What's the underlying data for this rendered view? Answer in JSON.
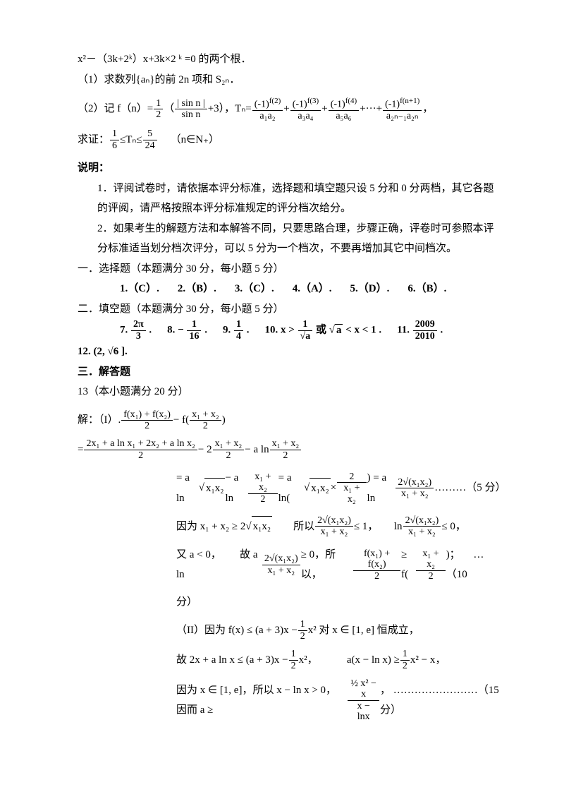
{
  "colors": {
    "text": "#000000",
    "bg": "#ffffff"
  },
  "fonts": {
    "body_family": "SimSun",
    "body_size_pt": 11
  },
  "problem": {
    "eq_roots": "x²－（3k+2ᵏ）x+3k×2 ᵏ =0 的两个根．",
    "part1": "（1）求数列{aₙ}的前 2n 项和 S₂ₙ．",
    "part2_prefix": "（2）记 f（n）=",
    "part2_half": "1",
    "part2_half_den": "2",
    "part2_paren_open": "（",
    "part2_sin_num": "| sin n |",
    "part2_sin_den": "sin n",
    "part2_plus3": "+3），",
    "Tn": "Tₙ=",
    "T_terms_f2": "(-1)",
    "T_terms_exp2": "f(2)",
    "T_terms_d1": "a₁a₂",
    "T_terms_exp3": "f(3)",
    "T_terms_d2": "a₃a₄",
    "T_terms_exp4": "f(4)",
    "T_terms_d3": "a₅a₆",
    "T_terms_dots": "+···+",
    "T_terms_expn1": "f(n+1)",
    "T_terms_dn": "a₂ₙ₋₁a₂ₙ",
    "comma": "，",
    "prove_prefix": "求证：",
    "prove_16_num": "1",
    "prove_16_den": "6",
    "prove_le": "≤Tₙ≤",
    "prove_524_num": "5",
    "prove_524_den": "24",
    "prove_tail": "（n∈N₊）"
  },
  "explain": {
    "title": "说明：",
    "p1": "1．评阅试卷时，请依据本评分标准，选择题和填空题只设 5 分和 0 分两档，其它各题的评阅，请严格按照本评分标准规定的评分档次给分。",
    "p2": "2．如果考生的解题方法和本解答不同，只要思路合理，步骤正确，评卷时可参照本评分标准适当划分档次评分，可以 5 分为一个档次，不要再增加其它中间档次。"
  },
  "sec1": {
    "title": "一．选择题",
    "note": "（本题满分 30 分，每小题 5 分）",
    "a1": "1.（C）.",
    "a2": "2.（B）.",
    "a3": "3.（C）.",
    "a4": "4.（A）.",
    "a5": "5.（D）.",
    "a6": "6.（B）."
  },
  "sec2": {
    "title": "二．填空题",
    "note": "（本题满分 30 分，每小题 5 分）",
    "q7_label": "7.",
    "q7_num": "2π",
    "q7_den": "3",
    "dot": ".",
    "q8_label": "8.",
    "q8_neg": "−",
    "q8_num": "1",
    "q8_den": "16",
    "q9_label": "9.",
    "q9_num": "1",
    "q9_den": "4",
    "q10_label": "10.",
    "q10_x": "x >",
    "q10_num": "1",
    "q10_den": "√a",
    "q10_or": " 或 ",
    "q10_sqrt": "a",
    "q10_lt": " < x < 1 .",
    "q11_label": "11.",
    "q11_num": "2009",
    "q11_den": "2010",
    "q12_label": "12.",
    "q12_val": "(2, √6 ]."
  },
  "sec3": {
    "title": "三．解答题",
    "q13": "13（本小题满分 20 分）",
    "sol_head": "解：（I）.",
    "line1_num": "f(x₁) + f(x₂)",
    "line1_den": "2",
    "line1_minus": " − f(",
    "line1b_num": "x₁ + x₂",
    "line1b_den": "2",
    "line1_close": ")",
    "line2_eq": "=",
    "line2_num": "2x₁ + a ln x₁ + 2x₂ + a ln x₂",
    "line2_den": "2",
    "line2_m": " − 2 ",
    "line2b_num": "x₁ + x₂",
    "line2b_den": "2",
    "line2_m2": " − a ln ",
    "line3_eq": "= a ln ",
    "line3_sqrt": "x₁x₂",
    "line3_m": " − a ln ",
    "line3b_num": "x₁ + x₂",
    "line3b_den": "2",
    "line3_eq2": " = a ln(",
    "line3_times": " × ",
    "line3c_num": "2",
    "line3c_den": "x₁ + x₂",
    "line3_close": ") = a ln ",
    "line3d_num": "2√(x₁x₂)",
    "line3d_den": "x₁ + x₂",
    "line3_dots": " ………（5 分）",
    "line4_since": "因为 x₁ + x₂ ≥ 2",
    "line4_sqrt": "x₁x₂",
    "line4_so": "　　所以 ",
    "line4a_num": "2√(x₁x₂)",
    "line4a_den": "x₁ + x₂",
    "line4_le1": " ≤ 1，　　ln ",
    "line4_le0": " ≤ 0，",
    "line5_also": "又 a < 0，　　 故 a ln ",
    "line5_ge0": " ≥ 0，所以，",
    "line5b_num": "f(x₁) + f(x₂)",
    "line5b_den": "2",
    "line5_gef": " ≥ f(",
    "line5_close": ")； 　…（10",
    "line5_fen": "分）",
    "part2_head": "（II）因为 f(x) ≤ (a + 3)x − ",
    "half_num": "1",
    "half_den": "2",
    "part2_x2": " x² 对 x ∈ [1, e] 恒成立，",
    "line7_so": "故 2x + a ln x ≤ (a + 3)x − ",
    "line7_x2": " x²，　　　 a(x − ln x) ≥ ",
    "line7_x2b": " x² − x，",
    "line8_since": "因为 x ∈ [1, e]，所以 x − ln x > 0，　因而 a ≥ ",
    "line8a_num": "½ x² − x",
    "line8a_den": "x − lnx",
    "line8_dots": "， ……………………（15 分）"
  }
}
